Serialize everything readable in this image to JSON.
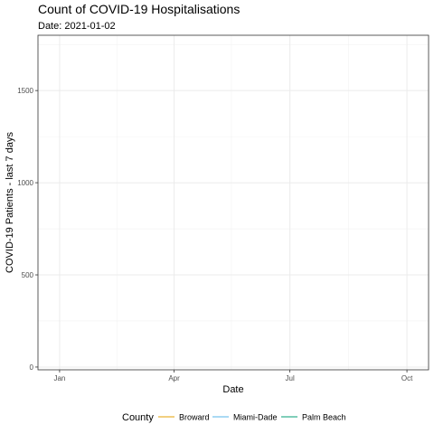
{
  "chart_data": {
    "type": "line",
    "title": "Count of COVID-19 Hospitalisations",
    "subtitle": "Date: 2021-01-02",
    "xlabel": "Date",
    "ylabel": "COVID-19 Patients - last 7 days",
    "x_ticks": [
      {
        "label": "Jan",
        "date": "2021-01-01"
      },
      {
        "label": "Apr",
        "date": "2021-04-01"
      },
      {
        "label": "Jul",
        "date": "2021-07-01"
      },
      {
        "label": "Oct",
        "date": "2021-10-01"
      }
    ],
    "x_minor_ticks": [
      "2021-02-15",
      "2021-05-16",
      "2021-08-16"
    ],
    "xlim": [
      "2020-12-15",
      "2021-10-18"
    ],
    "y_ticks": [
      0,
      500,
      1000,
      1500
    ],
    "ylim": [
      -15,
      1800
    ],
    "grid": true,
    "legend": {
      "title": "County",
      "position": "bottom",
      "entries": [
        {
          "name": "Broward",
          "color": "#E69F00"
        },
        {
          "name": "Miami-Dade",
          "color": "#56B4E9"
        },
        {
          "name": "Palm Beach",
          "color": "#009E73"
        }
      ]
    },
    "series": [
      {
        "name": "Broward",
        "color": "#E69F00",
        "points": []
      },
      {
        "name": "Miami-Dade",
        "color": "#56B4E9",
        "points": []
      },
      {
        "name": "Palm Beach",
        "color": "#009E73",
        "points": []
      }
    ]
  }
}
